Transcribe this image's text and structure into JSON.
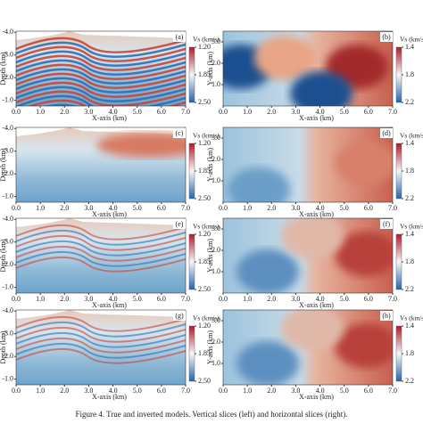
{
  "vertical": {
    "xlabel": "X-axis (km)",
    "ylabel": "Depth (km)",
    "xlim": [
      0,
      7
    ],
    "ylim": [
      -0.75,
      -4.05
    ],
    "xticks": [
      {
        "value": 0,
        "label": "0.0"
      },
      {
        "value": 1,
        "label": "1.0"
      },
      {
        "value": 2,
        "label": "2.0"
      },
      {
        "value": 3,
        "label": "3.0"
      },
      {
        "value": 4,
        "label": "4.0"
      },
      {
        "value": 5,
        "label": "5.0"
      },
      {
        "value": 6,
        "label": "6.0"
      },
      {
        "value": 7,
        "label": "7.0"
      }
    ],
    "yticks": [
      {
        "value": -1,
        "label": "-1.0"
      },
      {
        "value": -2,
        "label": "-2.0"
      },
      {
        "value": -3,
        "label": "-3.0"
      },
      {
        "value": -4,
        "label": "-4.0"
      }
    ],
    "colorbar": {
      "title": "Vs (km/s)",
      "lim": [
        1.2,
        2.5
      ],
      "ticks": [
        {
          "value": 1.2,
          "label": "1.20"
        },
        {
          "value": 1.85,
          "label": "1.85"
        },
        {
          "value": 2.5,
          "label": "2.50"
        }
      ]
    }
  },
  "horizontal": {
    "xlabel": "X-axis (km)",
    "ylabel": "Y-axis (km)",
    "xlim": [
      0,
      7
    ],
    "ylim": [
      0,
      3.5
    ],
    "xticks": [
      {
        "value": 0,
        "label": "0.0"
      },
      {
        "value": 1,
        "label": "1.0"
      },
      {
        "value": 2,
        "label": "2.0"
      },
      {
        "value": 3,
        "label": "3.0"
      },
      {
        "value": 4,
        "label": "4.0"
      },
      {
        "value": 5,
        "label": "5.0"
      },
      {
        "value": 6,
        "label": "6.0"
      },
      {
        "value": 7,
        "label": "7.0"
      }
    ],
    "yticks": [
      {
        "value": 1,
        "label": "1.0"
      },
      {
        "value": 2,
        "label": "2.0"
      },
      {
        "value": 3,
        "label": "3.0"
      }
    ],
    "colorbar": {
      "title": "Vs (km/s)",
      "lim": [
        1.4,
        2.2
      ],
      "ticks": [
        1.4,
        1.8,
        2.2
      ]
    }
  },
  "panels": [
    "(a)",
    "(b)",
    "(c)",
    "(d)",
    "(e)",
    "(f)",
    "(g)",
    "(h)"
  ],
  "caption": "Figure 4. True and inverted models. Vertical slices (left) and horizontal slices (right)."
}
